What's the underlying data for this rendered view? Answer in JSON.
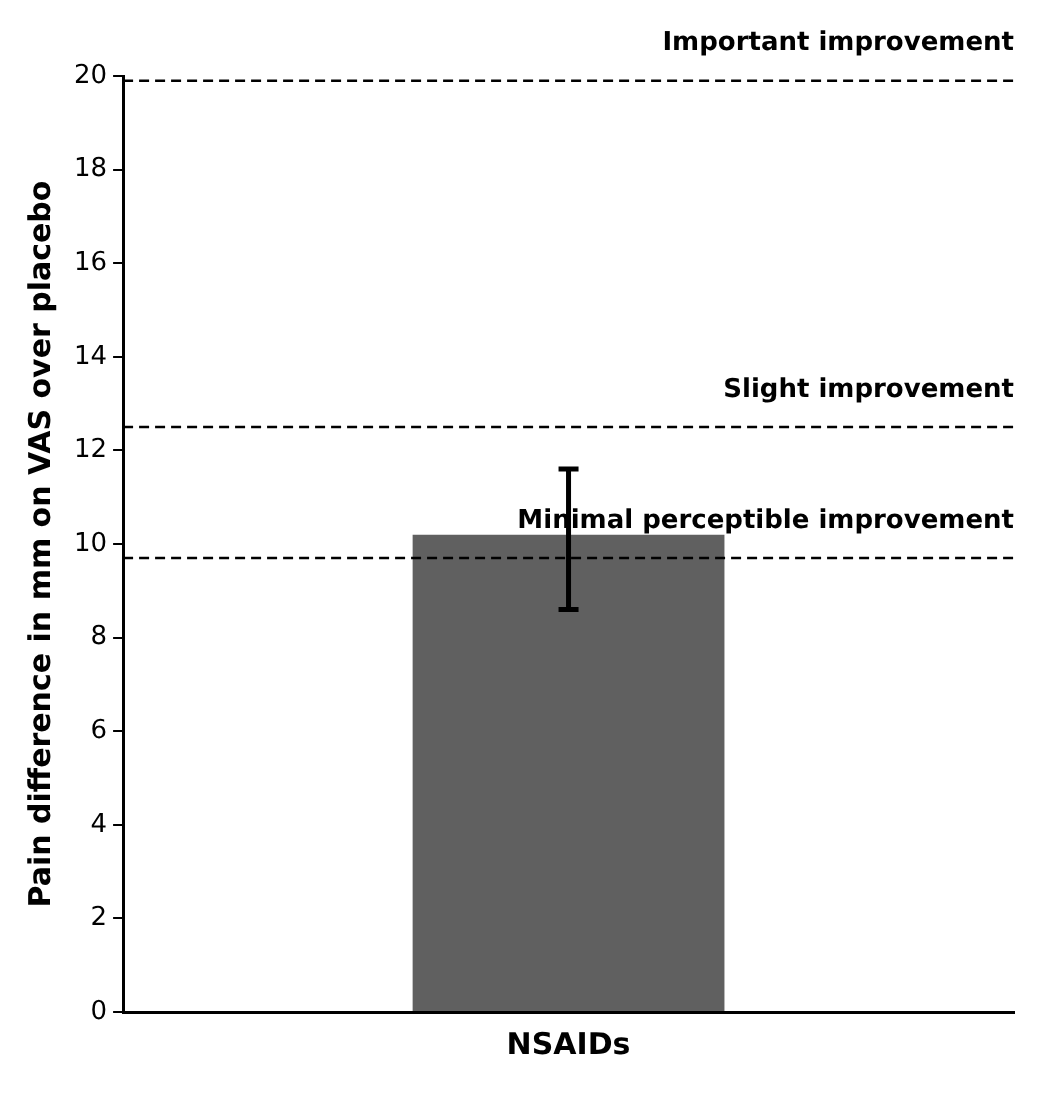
{
  "chart_data": {
    "type": "bar",
    "ylabel": "Pain difference in mm on VAS over placebo",
    "categories": [
      "NSAIDs"
    ],
    "values": [
      10.2
    ],
    "errors": [
      [
        8.6,
        11.6
      ]
    ],
    "color": "#606060",
    "ylim": [
      0,
      20
    ],
    "yticks": [
      0,
      2,
      4,
      6,
      8,
      10,
      12,
      14,
      16,
      18,
      20
    ],
    "grid": false,
    "legend": false,
    "ref_lines": [
      {
        "axis": "y",
        "value": 19.9,
        "label": "Important improvement",
        "line_style": "dashed",
        "color": "#000000"
      },
      {
        "axis": "y",
        "value": 12.5,
        "label": "Slight improvement",
        "line_style": "dashed",
        "color": "#000000"
      },
      {
        "axis": "y",
        "value": 9.7,
        "label": "Minimal perceptible improvement",
        "line_style": "dashed",
        "color": "#000000"
      }
    ]
  }
}
